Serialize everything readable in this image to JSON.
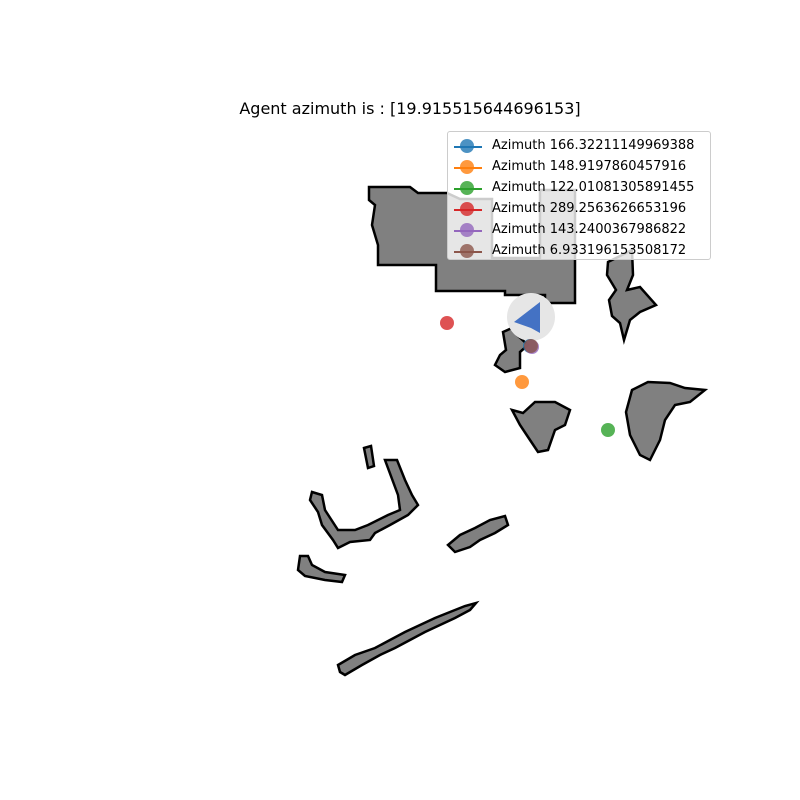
{
  "title": "Agent azimuth is : [19.915515644696153]",
  "legend": [
    {
      "label": "Azimuth 166.32211149969388",
      "color": "#1f77b4"
    },
    {
      "label": "Azimuth 148.9197860457916",
      "color": "#ff7f0e"
    },
    {
      "label": "Azimuth 122.01081305891455",
      "color": "#2ca02c"
    },
    {
      "label": "Azimuth 289.2563626653196",
      "color": "#d62728"
    },
    {
      "label": "Azimuth 143.2400367986822",
      "color": "#9467bd"
    },
    {
      "label": "Azimuth 6.933196153508172",
      "color": "#8c564b"
    }
  ],
  "colors": {
    "obstacle_fill": "#808080",
    "obstacle_outline": "#000000",
    "agent": "#4472c4",
    "agent_halo": "#e6e6e6"
  },
  "icons": {
    "agent": "arrow-icon"
  }
}
